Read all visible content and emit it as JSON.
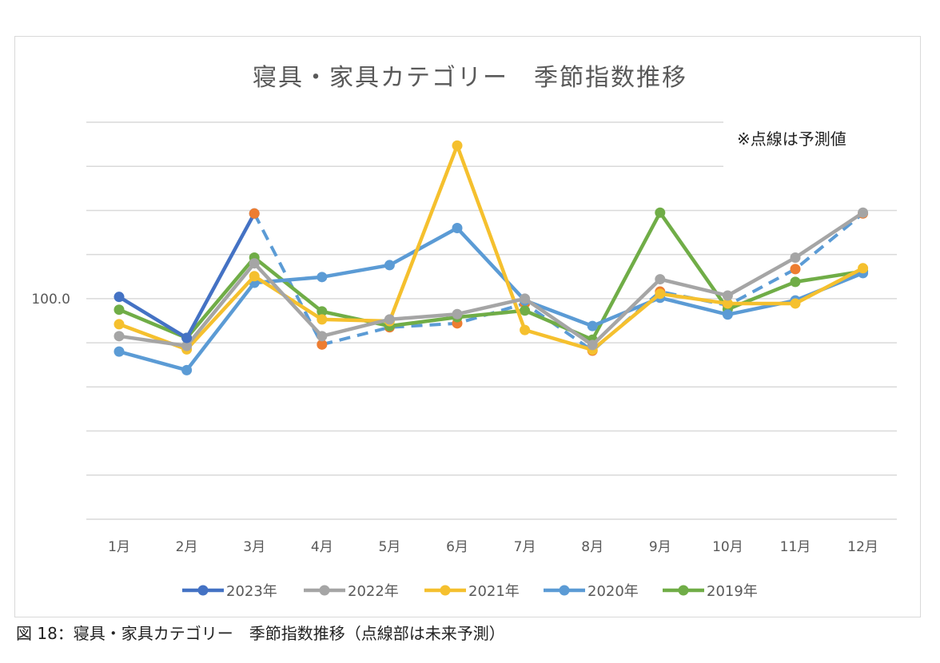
{
  "caption": "図 18：寝具・家具カテゴリー　季節指数推移（点線部は未来予測）",
  "chart_data": {
    "type": "line",
    "title": "寝具・家具カテゴリー　季節指数推移",
    "annotation": "※点線は予測値",
    "xlabel": "",
    "ylabel": "",
    "categories": [
      "1月",
      "2月",
      "3月",
      "4月",
      "5月",
      "6月",
      "7月",
      "8月",
      "9月",
      "10月",
      "11月",
      "12月"
    ],
    "y_tick_labels": [
      "100.0"
    ],
    "ylim": [
      50,
      140
    ],
    "grid_step": 10,
    "grid": true,
    "legend_position": "bottom",
    "series": [
      {
        "name": "2023年",
        "color": "#4472C4",
        "values": [
          100.4,
          91.1,
          119.3,
          null,
          null,
          null,
          null,
          null,
          null,
          null,
          null,
          null
        ]
      },
      {
        "name": "2022年",
        "color": "#A5A5A5",
        "values": [
          91.5,
          89.3,
          108.0,
          91.5,
          95.3,
          96.5,
          100.0,
          89.5,
          104.4,
          100.7,
          109.3,
          119.5
        ]
      },
      {
        "name": "2021年",
        "color": "#F5C02E",
        "values": [
          94.2,
          88.5,
          105.1,
          95.3,
          94.9,
          134.7,
          92.9,
          88.4,
          101.1,
          98.9,
          98.9,
          106.9
        ]
      },
      {
        "name": "2020年",
        "color": "#5B9BD5",
        "values": [
          88.0,
          83.8,
          103.6,
          104.9,
          107.6,
          116.0,
          99.6,
          93.8,
          100.2,
          96.4,
          99.6,
          105.8
        ]
      },
      {
        "name": "2019年",
        "color": "#70AD47",
        "values": [
          97.5,
          91.1,
          109.3,
          97.1,
          93.8,
          95.8,
          97.3,
          90.7,
          119.5,
          97.6,
          103.8,
          106.2
        ]
      }
    ],
    "forecast": {
      "line_color": "#5B9BD5",
      "marker_color": "#ED7D31",
      "style": "dashed",
      "values": [
        null,
        null,
        119.3,
        89.6,
        93.5,
        94.4,
        98.9,
        88.2,
        101.6,
        98.5,
        106.7,
        119.3
      ]
    }
  }
}
